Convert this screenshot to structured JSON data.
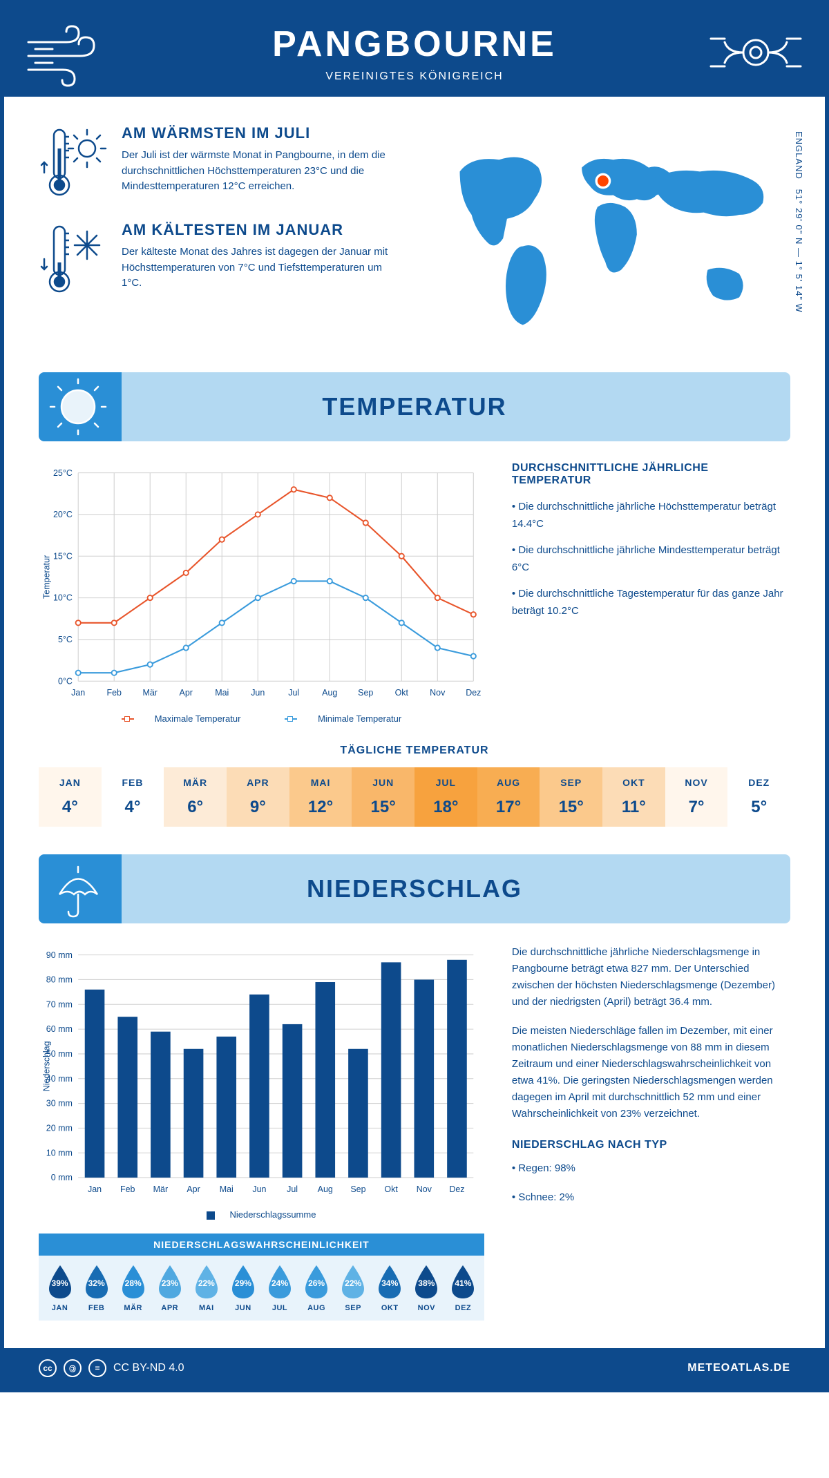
{
  "header": {
    "title": "PANGBOURNE",
    "subtitle": "VEREINIGTES KÖNIGREICH"
  },
  "coords": "51° 29' 0\" N — 1° 5' 14\" W",
  "coords_sub": "ENGLAND",
  "warmest": {
    "title": "AM WÄRMSTEN IM JULI",
    "text": "Der Juli ist der wärmste Monat in Pangbourne, in dem die durchschnittlichen Höchsttemperaturen 23°C und die Mindesttemperaturen 12°C erreichen."
  },
  "coldest": {
    "title": "AM KÄLTESTEN IM JANUAR",
    "text": "Der kälteste Monat des Jahres ist dagegen der Januar mit Höchsttemperaturen von 7°C und Tiefsttemperaturen um 1°C."
  },
  "sections": {
    "temp": "TEMPERATUR",
    "precip": "NIEDERSCHLAG"
  },
  "temp_chart": {
    "type": "line",
    "months": [
      "Jan",
      "Feb",
      "Mär",
      "Apr",
      "Mai",
      "Jun",
      "Jul",
      "Aug",
      "Sep",
      "Okt",
      "Nov",
      "Dez"
    ],
    "max": [
      7,
      7,
      10,
      13,
      17,
      20,
      23,
      22,
      19,
      15,
      10,
      8
    ],
    "min": [
      1,
      1,
      2,
      4,
      7,
      10,
      12,
      12,
      10,
      7,
      4,
      3
    ],
    "max_color": "#e8552b",
    "min_color": "#3a9bdc",
    "ylabel": "Temperatur",
    "ylim": [
      0,
      25
    ],
    "ytick": 5,
    "grid_color": "#d0d0d0",
    "bg": "#ffffff",
    "legend_max": "Maximale Temperatur",
    "legend_min": "Minimale Temperatur"
  },
  "temp_side": {
    "title": "DURCHSCHNITTLICHE JÄHRLICHE TEMPERATUR",
    "b1": "• Die durchschnittliche jährliche Höchsttemperatur beträgt 14.4°C",
    "b2": "• Die durchschnittliche jährliche Mindesttemperatur beträgt 6°C",
    "b3": "• Die durchschnittliche Tagestemperatur für das ganze Jahr beträgt 10.2°C"
  },
  "daily": {
    "title": "TÄGLICHE TEMPERATUR",
    "months": [
      "JAN",
      "FEB",
      "MÄR",
      "APR",
      "MAI",
      "JUN",
      "JUL",
      "AUG",
      "SEP",
      "OKT",
      "NOV",
      "DEZ"
    ],
    "values": [
      "4°",
      "4°",
      "6°",
      "9°",
      "12°",
      "15°",
      "18°",
      "17°",
      "15°",
      "11°",
      "7°",
      "5°"
    ],
    "colors": [
      "#fff6ec",
      "#ffffff",
      "#fdebd7",
      "#fcdcb6",
      "#fbc98c",
      "#f9b76a",
      "#f7a23e",
      "#f8ad52",
      "#fbc98c",
      "#fcdcb6",
      "#fff6ec",
      "#ffffff"
    ]
  },
  "precip_chart": {
    "type": "bar",
    "months": [
      "Jan",
      "Feb",
      "Mär",
      "Apr",
      "Mai",
      "Jun",
      "Jul",
      "Aug",
      "Sep",
      "Okt",
      "Nov",
      "Dez"
    ],
    "values": [
      76,
      65,
      59,
      52,
      57,
      74,
      62,
      79,
      52,
      87,
      80,
      88
    ],
    "bar_color": "#0d4a8c",
    "ylabel": "Niederschlag",
    "ylim": [
      0,
      90
    ],
    "ytick": 10,
    "grid_color": "#d0d0d0",
    "legend": "Niederschlagssumme"
  },
  "precip_text": {
    "p1": "Die durchschnittliche jährliche Niederschlagsmenge in Pangbourne beträgt etwa 827 mm. Der Unterschied zwischen der höchsten Niederschlagsmenge (Dezember) und der niedrigsten (April) beträgt 36.4 mm.",
    "p2": "Die meisten Niederschläge fallen im Dezember, mit einer monatlichen Niederschlagsmenge von 88 mm in diesem Zeitraum und einer Niederschlagswahrscheinlichkeit von etwa 41%. Die geringsten Niederschlagsmengen werden dagegen im April mit durchschnittlich 52 mm und einer Wahrscheinlichkeit von 23% verzeichnet.",
    "type_title": "NIEDERSCHLAG NACH TYP",
    "type1": "• Regen: 98%",
    "type2": "• Schnee: 2%"
  },
  "prob": {
    "title": "NIEDERSCHLAGSWAHRSCHEINLICHKEIT",
    "months": [
      "JAN",
      "FEB",
      "MÄR",
      "APR",
      "MAI",
      "JUN",
      "JUL",
      "AUG",
      "SEP",
      "OKT",
      "NOV",
      "DEZ"
    ],
    "values": [
      "39%",
      "32%",
      "28%",
      "23%",
      "22%",
      "29%",
      "24%",
      "26%",
      "22%",
      "34%",
      "38%",
      "41%"
    ],
    "colors": [
      "#0d4a8c",
      "#186cb3",
      "#2a8fd6",
      "#4fa8e0",
      "#5fb2e5",
      "#2a8fd6",
      "#3a9bdc",
      "#3a9bdc",
      "#5fb2e5",
      "#186cb3",
      "#0d4a8c",
      "#0d4a8c"
    ]
  },
  "footer": {
    "license": "CC BY-ND 4.0",
    "site": "METEOATLAS.DE"
  }
}
